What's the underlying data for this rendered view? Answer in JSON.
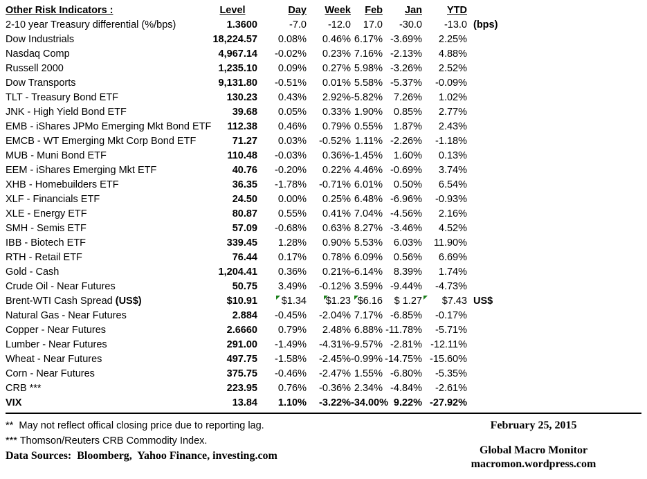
{
  "colors": {
    "background": "#ffffff",
    "text": "#000000",
    "table_border": "#000000",
    "flag_green": "#1a7f1a"
  },
  "icons": {
    "cell_comment_flag": "green top-left corner triangle (spreadsheet formula/comment indicator)"
  },
  "chart_data": {
    "type": "table",
    "title": "Other Risk Indicators :",
    "columns": [
      "Level",
      "Day",
      "Week",
      "Feb",
      "Jan",
      "YTD"
    ],
    "rows": [
      {
        "label": "2-10 year Treasury differential (%/bps)",
        "level": "1.3600",
        "day": "-7.0",
        "week": "-12.0",
        "feb": "17.0",
        "jan": "-30.0",
        "ytd": "-13.0",
        "extra": "(bps)"
      },
      {
        "label": "Dow Industrials",
        "level": "18,224.57",
        "day": "0.08%",
        "week": "0.46%",
        "feb": "6.17%",
        "jan": "-3.69%",
        "ytd": "2.25%"
      },
      {
        "label": "Nasdaq Comp",
        "level": "4,967.14",
        "day": "-0.02%",
        "week": "0.23%",
        "feb": "7.16%",
        "jan": "-2.13%",
        "ytd": "4.88%"
      },
      {
        "label": "Russell 2000",
        "level": "1,235.10",
        "day": "0.09%",
        "week": "0.27%",
        "feb": "5.98%",
        "jan": "-3.26%",
        "ytd": "2.52%"
      },
      {
        "label": "Dow Transports",
        "level": "9,131.80",
        "day": "-0.51%",
        "week": "0.01%",
        "feb": "5.58%",
        "jan": "-5.37%",
        "ytd": "-0.09%"
      },
      {
        "label": "TLT - Treasury Bond ETF",
        "level": "130.23",
        "day": "0.43%",
        "week": "2.92%",
        "feb": "-5.82%",
        "jan": "7.26%",
        "ytd": "1.02%"
      },
      {
        "label": "JNK - High Yield Bond ETF",
        "level": "39.68",
        "day": "0.05%",
        "week": "0.33%",
        "feb": "1.90%",
        "jan": "0.85%",
        "ytd": "2.77%"
      },
      {
        "label": "EMB - iShares JPMo Emerging Mkt Bond ETF",
        "level": "112.38",
        "day": "0.46%",
        "week": "0.79%",
        "feb": "0.55%",
        "jan": "1.87%",
        "ytd": "2.43%"
      },
      {
        "label": "EMCB - WT Emerging Mkt Corp Bond ETF",
        "level": "71.27",
        "day": "0.03%",
        "week": "-0.52%",
        "feb": "1.11%",
        "jan": "-2.26%",
        "ytd": "-1.18%"
      },
      {
        "label": "MUB - Muni Bond ETF",
        "level": "110.48",
        "day": "-0.03%",
        "week": "0.36%",
        "feb": "-1.45%",
        "jan": "1.60%",
        "ytd": "0.13%"
      },
      {
        "label": "EEM - iShares Emerging Mkt ETF",
        "level": "40.76",
        "day": "-0.20%",
        "week": "0.22%",
        "feb": "4.46%",
        "jan": "-0.69%",
        "ytd": "3.74%"
      },
      {
        "label": "XHB - Homebuilders ETF",
        "level": "36.35",
        "day": "-1.78%",
        "week": "-0.71%",
        "feb": "6.01%",
        "jan": "0.50%",
        "ytd": "6.54%"
      },
      {
        "label": "XLF - Financials ETF",
        "level": "24.50",
        "day": "0.00%",
        "week": "0.25%",
        "feb": "6.48%",
        "jan": "-6.96%",
        "ytd": "-0.93%"
      },
      {
        "label": "XLE - Energy ETF",
        "level": "80.87",
        "day": "0.55%",
        "week": "0.41%",
        "feb": "7.04%",
        "jan": "-4.56%",
        "ytd": "2.16%"
      },
      {
        "label": "SMH - Semis ETF",
        "level": "57.09",
        "day": "-0.68%",
        "week": "0.63%",
        "feb": "8.27%",
        "jan": "-3.46%",
        "ytd": "4.52%"
      },
      {
        "label": "IBB - Biotech ETF",
        "level": "339.45",
        "day": "1.28%",
        "week": "0.90%",
        "feb": "5.53%",
        "jan": "6.03%",
        "ytd": "11.90%"
      },
      {
        "label": "RTH - Retail ETF",
        "level": "76.44",
        "day": "0.17%",
        "week": "0.78%",
        "feb": "6.09%",
        "jan": "0.56%",
        "ytd": "6.69%"
      },
      {
        "label": "Gold - Cash",
        "level": "1,204.41",
        "day": "0.36%",
        "week": "0.21%",
        "feb": "-6.14%",
        "jan": "8.39%",
        "ytd": "1.74%"
      },
      {
        "label": "Crude Oil - Near Futures",
        "level": "50.75",
        "day": "3.49%",
        "week": "-0.12%",
        "feb": "3.59%",
        "jan": "-9.44%",
        "ytd": "-4.73%"
      },
      {
        "label": "Brent-WTI Cash Spread ",
        "label_bold": "(US$)",
        "level": "$10.91",
        "day": "$1.34",
        "week": "$1.23",
        "feb": "$6.16",
        "jan": "$ 1.27",
        "ytd": "$7.43",
        "extra": "US$",
        "flags": [
          "day",
          "week",
          "feb",
          "ytd"
        ]
      },
      {
        "label": "Natural Gas - Near Futures",
        "level": "2.884",
        "day": "-0.45%",
        "week": "-2.04%",
        "feb": "7.17%",
        "jan": "-6.85%",
        "ytd": "-0.17%"
      },
      {
        "label": "Copper - Near Futures",
        "level": "2.6660",
        "day": "0.79%",
        "week": "2.48%",
        "feb": "6.88%",
        "jan": "-11.78%",
        "ytd": "-5.71%"
      },
      {
        "label": "Lumber - Near Futures",
        "level": "291.00",
        "day": "-1.49%",
        "week": "-4.31%",
        "feb": "-9.57%",
        "jan": "-2.81%",
        "ytd": "-12.11%"
      },
      {
        "label": "Wheat - Near Futures",
        "level": "497.75",
        "day": "-1.58%",
        "week": "-2.45%",
        "feb": "-0.99%",
        "jan": "-14.75%",
        "ytd": "-15.60%"
      },
      {
        "label": "Corn - Near Futures",
        "level": "375.75",
        "day": "-0.46%",
        "week": "-2.47%",
        "feb": "1.55%",
        "jan": "-6.80%",
        "ytd": "-5.35%"
      },
      {
        "label": "CRB ***",
        "level": "223.95",
        "day": "0.76%",
        "week": "-0.36%",
        "feb": "2.34%",
        "jan": "-4.84%",
        "ytd": "-2.61%"
      },
      {
        "label": "VIX",
        "level": "13.84",
        "day": "1.10%",
        "week": "-3.22%",
        "feb": "-34.00%",
        "jan": "9.22%",
        "ytd": "-27.92%",
        "bold": true
      }
    ]
  },
  "footer": {
    "note_reporting_lag": "**  May not reflect offical closing price due to reporting lag.",
    "note_crb": "*** Thomson/Reuters CRB Commodity Index.",
    "data_sources": "Data Sources:  Bloomberg,  Yahoo Finance, investing.com",
    "date": "February 25, 2015",
    "source_name": "Global Macro Monitor",
    "source_url": "macromon.wordpress.com"
  }
}
